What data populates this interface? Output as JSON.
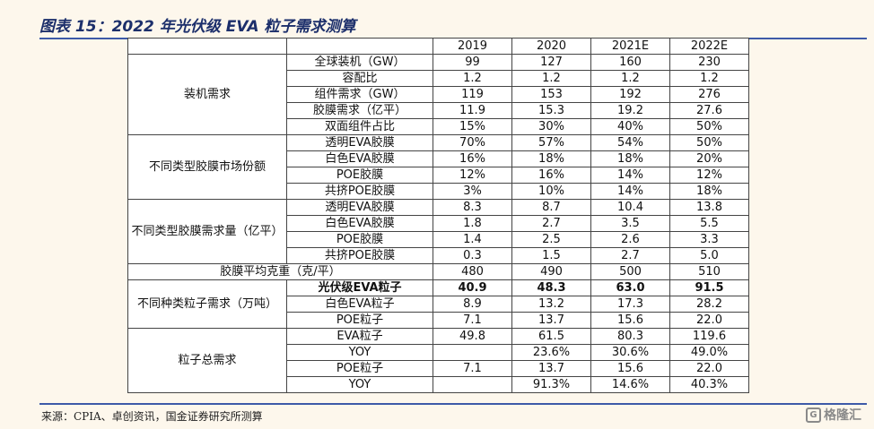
{
  "title": "图表 15：2022 年光伏级 EVA 粒子需求测算",
  "table": {
    "headers": [
      "",
      "",
      "2019",
      "2020",
      "2021E",
      "2022E"
    ],
    "groups": {
      "installation": "装机需求",
      "film_share": "不同类型胶膜市场份额",
      "film_demand": "不同类型胶膜需求量（亿平）",
      "particle_demand": "不同种类粒子需求（万吨）",
      "total_demand": "粒子总需求"
    },
    "rows": [
      {
        "label": "全球装机（GW）",
        "values": [
          "99",
          "127",
          "160",
          "230"
        ]
      },
      {
        "label": "容配比",
        "values": [
          "1.2",
          "1.2",
          "1.2",
          "1.2"
        ]
      },
      {
        "label": "组件需求（GW）",
        "values": [
          "119",
          "153",
          "192",
          "276"
        ]
      },
      {
        "label": "胶膜需求（亿平）",
        "values": [
          "11.9",
          "15.3",
          "19.2",
          "27.6"
        ]
      },
      {
        "label": "双面组件占比",
        "values": [
          "15%",
          "30%",
          "40%",
          "50%"
        ]
      },
      {
        "label": "透明EVA胶膜",
        "values": [
          "70%",
          "57%",
          "54%",
          "50%"
        ]
      },
      {
        "label": "白色EVA胶膜",
        "values": [
          "16%",
          "18%",
          "18%",
          "20%"
        ]
      },
      {
        "label": "POE胶膜",
        "values": [
          "12%",
          "16%",
          "14%",
          "12%"
        ]
      },
      {
        "label": "共挤POE胶膜",
        "values": [
          "3%",
          "10%",
          "14%",
          "18%"
        ]
      },
      {
        "label": "透明EVA胶膜",
        "values": [
          "8.3",
          "8.7",
          "10.4",
          "13.8"
        ]
      },
      {
        "label": "白色EVA胶膜",
        "values": [
          "1.8",
          "2.7",
          "3.5",
          "5.5"
        ]
      },
      {
        "label": "POE胶膜",
        "values": [
          "1.4",
          "2.5",
          "2.6",
          "3.3"
        ]
      },
      {
        "label": "共挤POE胶膜",
        "values": [
          "0.3",
          "1.5",
          "2.7",
          "5.0"
        ]
      },
      {
        "label": "胶膜平均克重（克/平）",
        "values": [
          "480",
          "490",
          "500",
          "510"
        ]
      },
      {
        "label": "光伏级EVA粒子",
        "values": [
          "40.9",
          "48.3",
          "63.0",
          "91.5"
        ]
      },
      {
        "label": "白色EVA粒子",
        "values": [
          "8.9",
          "13.2",
          "17.3",
          "28.2"
        ]
      },
      {
        "label": "POE粒子",
        "values": [
          "7.1",
          "13.7",
          "15.6",
          "22.0"
        ]
      },
      {
        "label": "EVA粒子",
        "values": [
          "49.8",
          "61.5",
          "80.3",
          "119.6"
        ]
      },
      {
        "label": "YOY",
        "values": [
          "",
          "23.6%",
          "30.6%",
          "49.0%"
        ]
      },
      {
        "label": "POE粒子",
        "values": [
          "7.1",
          "13.7",
          "15.6",
          "22.0"
        ]
      },
      {
        "label": "YOY",
        "values": [
          "",
          "91.3%",
          "14.6%",
          "40.3%"
        ]
      }
    ]
  },
  "source": "来源：CPIA、卓创资讯，国金证券研究所测算",
  "logo": {
    "text": "格隆汇",
    "mark": "G"
  }
}
